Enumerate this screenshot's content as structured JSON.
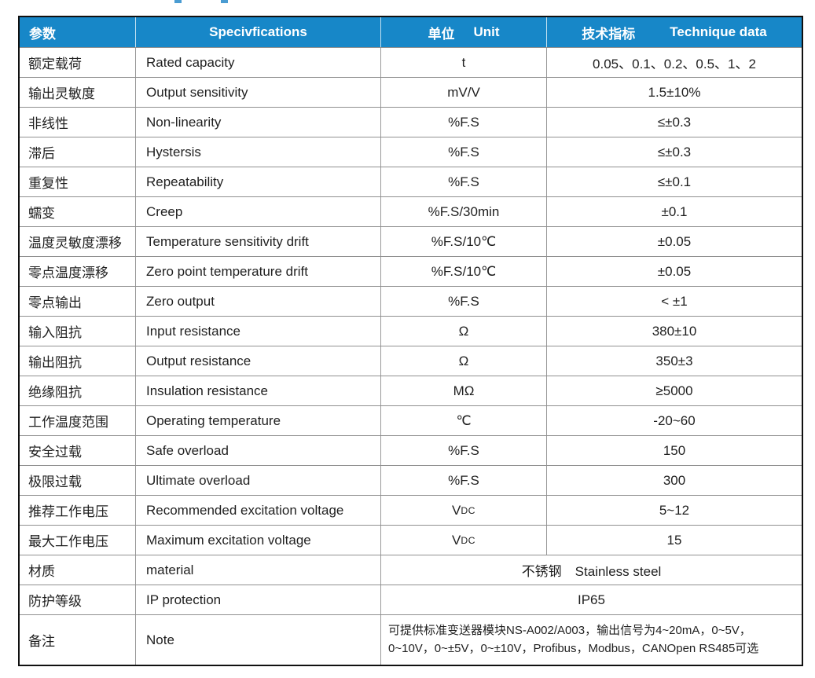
{
  "colors": {
    "header_bg": "#1787C8",
    "header_text": "#ffffff",
    "grid_line": "#909090",
    "outer_border": "#101010",
    "body_text": "#1f1f1f"
  },
  "table": {
    "header": {
      "col1_cn": "参数",
      "col2_en": "Specivfications",
      "col3_cn": "单位",
      "col3_en": "Unit",
      "col4_cn": "技术指标",
      "col4_en": "Technique data"
    },
    "rows": [
      {
        "cn": "额定载荷",
        "en": "Rated capacity",
        "unit": "t",
        "value": "0.05、0.1、0.2、0.5、1、2"
      },
      {
        "cn": "输出灵敏度",
        "en": "Output sensitivity",
        "unit": "mV/V",
        "value": "1.5±10%"
      },
      {
        "cn": "非线性",
        "en": "Non-linearity",
        "unit": "%F.S",
        "value": "≤±0.3"
      },
      {
        "cn": "滞后",
        "en": "Hystersis",
        "unit": "%F.S",
        "value": "≤±0.3"
      },
      {
        "cn": "重复性",
        "en": "Repeatability",
        "unit": "%F.S",
        "value": "≤±0.1"
      },
      {
        "cn": "蠕变",
        "en": "Creep",
        "unit": "%F.S/30min",
        "value": "±0.1"
      },
      {
        "cn": "温度灵敏度漂移",
        "en": "Temperature sensitivity drift",
        "unit": "%F.S/10℃",
        "value": "±0.05"
      },
      {
        "cn": "零点温度漂移",
        "en": "Zero point temperature drift",
        "unit": "%F.S/10℃",
        "value": "±0.05"
      },
      {
        "cn": "零点输出",
        "en": "Zero output",
        "unit": "%F.S",
        "value": "< ±1"
      },
      {
        "cn": "输入阻抗",
        "en": "Input resistance",
        "unit": "Ω",
        "value": "380±10"
      },
      {
        "cn": "输出阻抗",
        "en": "Output resistance",
        "unit": "Ω",
        "value": "350±3"
      },
      {
        "cn": "绝缘阻抗",
        "en": "Insulation resistance",
        "unit": "MΩ",
        "value": "≥5000"
      },
      {
        "cn": "工作温度范围",
        "en": "Operating temperature",
        "unit": "℃",
        "value": "-20~60"
      },
      {
        "cn": "安全过载",
        "en": "Safe overload",
        "unit": "%F.S",
        "value": "150"
      },
      {
        "cn": "极限过载",
        "en": "Ultimate overload",
        "unit": "%F.S",
        "value": "300"
      },
      {
        "cn": "推荐工作电压",
        "en": "Recommended excitation voltage",
        "unit": "V",
        "unit_sub": "DC",
        "value": "5~12"
      },
      {
        "cn": "最大工作电压",
        "en": "Maximum excitation voltage",
        "unit": "V",
        "unit_sub": "DC",
        "value": "15"
      },
      {
        "cn": "材质",
        "en": "material",
        "merged": true,
        "merged_value": "不锈钢　Stainless steel"
      },
      {
        "cn": "防护等级",
        "en": "IP protection",
        "merged": true,
        "merged_value": "IP65"
      },
      {
        "cn": "备注",
        "en": "Note",
        "merged": true,
        "note": true,
        "note_lines": [
          "可提供标准变送器模块NS-A002/A003，输出信号为4~20mA，0~5V，",
          "0~10V，0~±5V，0~±10V，Profibus，Modbus，CANOpen RS485可选"
        ]
      }
    ]
  }
}
